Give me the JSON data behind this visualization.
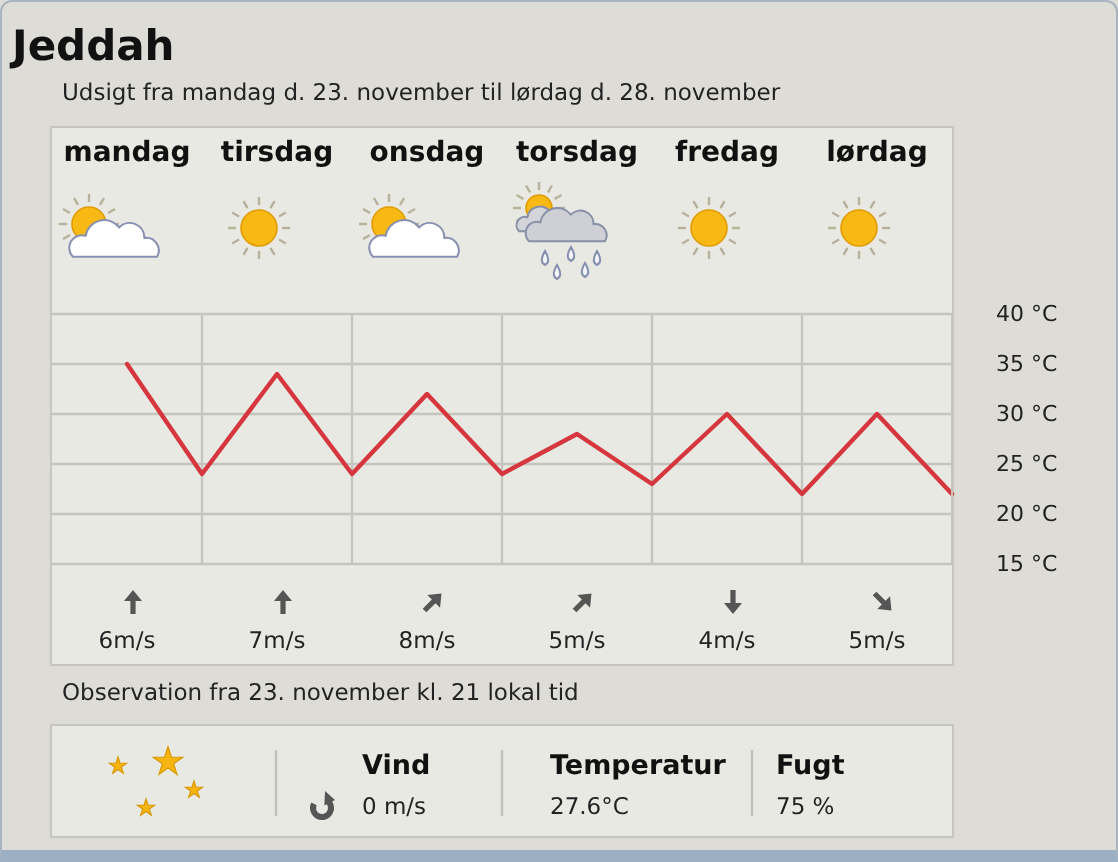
{
  "chart_data": [
    {
      "type": "line",
      "title": "Jeddah",
      "subtitle": "Udsigt fra mandag d. 23. november til lørdag d. 28. november",
      "categories": [
        "mandag",
        null,
        "tirsdag",
        null,
        "onsdag",
        null,
        "torsdag",
        null,
        "fredag",
        null,
        "lørdag",
        null
      ],
      "values": [
        35,
        24,
        34,
        24,
        32,
        24,
        28,
        23,
        30,
        22,
        30,
        22
      ],
      "color": "#d6363d",
      "ylim": [
        15,
        40
      ],
      "yticks": [
        {
          "value": 15,
          "label": "15 °C"
        },
        {
          "value": 20,
          "label": "20 °C"
        },
        {
          "value": 25,
          "label": "25 °C"
        },
        {
          "value": 30,
          "label": "30 °C"
        },
        {
          "value": 35,
          "label": "35 °C"
        },
        {
          "value": 40,
          "label": "40 °C"
        }
      ],
      "grid": true,
      "annotations": [
        "6m/s",
        "7m/s",
        "8m/s",
        "5m/s",
        "4m/s",
        "5m/s"
      ]
    },
    {
      "type": "other",
      "title": "Observation fra 23. november kl. 21 lokal tid",
      "annotations": [
        "Vind",
        "0 m/s",
        "Temperatur",
        "27.6°C",
        "Fugt",
        "75 %"
      ]
    }
  ]
}
